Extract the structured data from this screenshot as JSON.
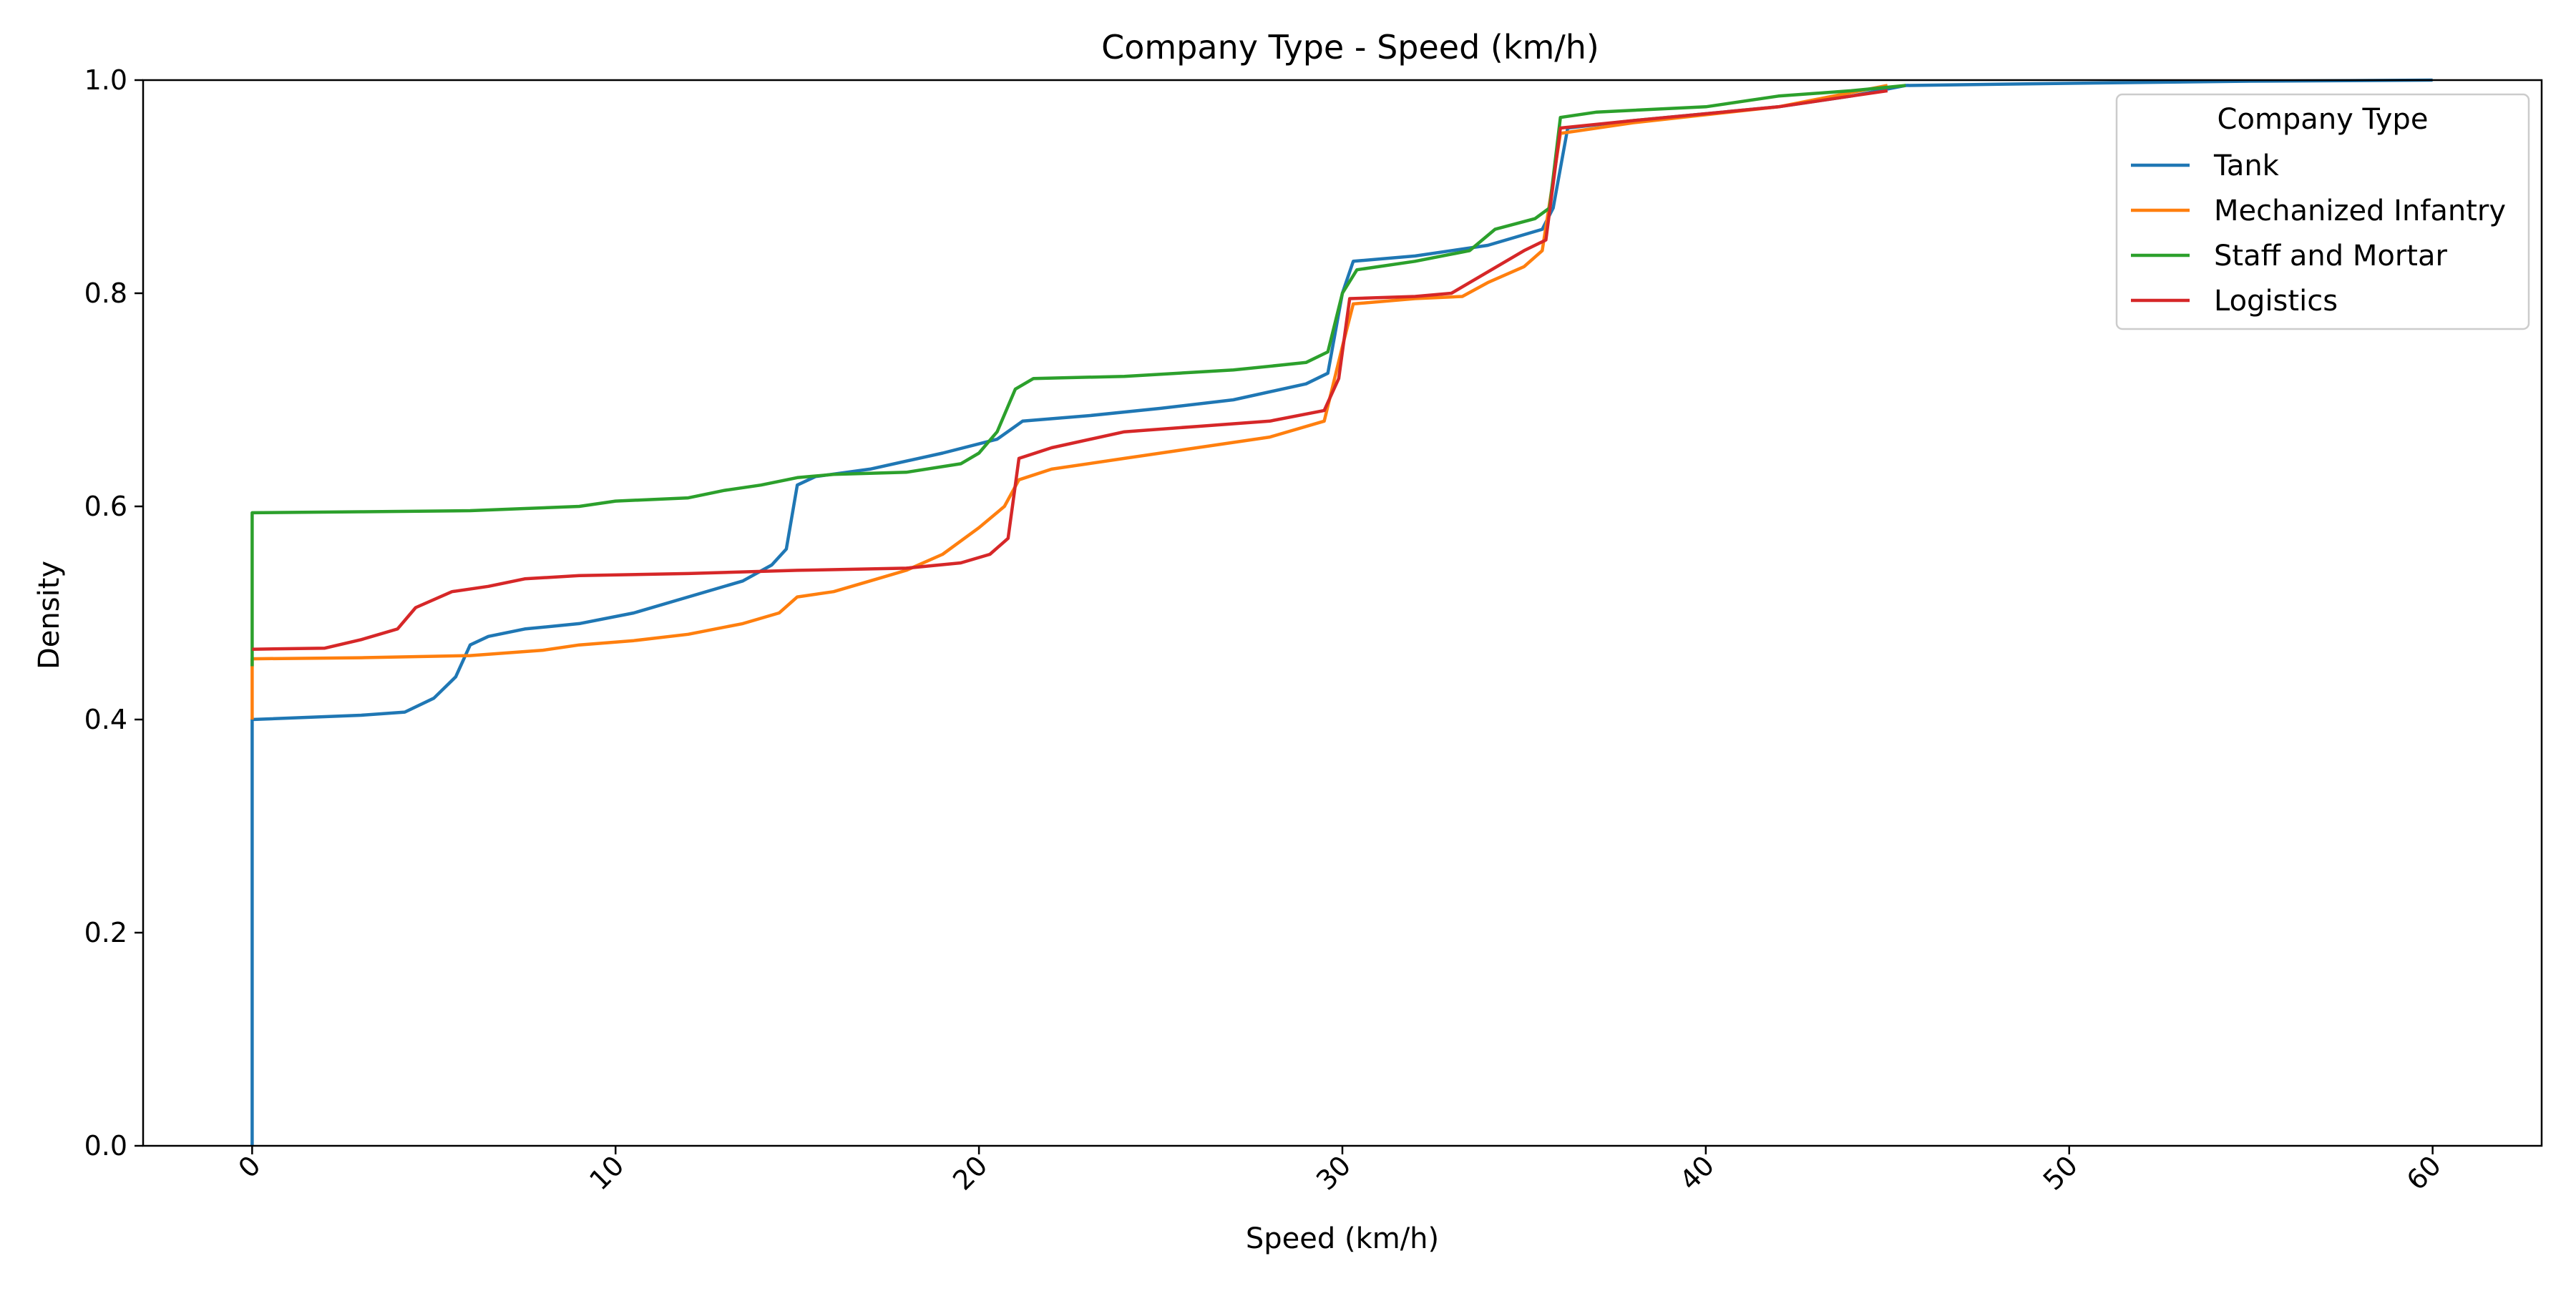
{
  "chart_data": {
    "type": "line",
    "title": "Company Type - Speed (km/h)",
    "xlabel": "Speed (km/h)",
    "ylabel": "Density",
    "xlim": [
      -3,
      63
    ],
    "ylim": [
      0,
      1.0
    ],
    "xticks": [
      0,
      10,
      20,
      30,
      40,
      50,
      60
    ],
    "yticks": [
      0.0,
      0.2,
      0.4,
      0.6,
      0.8,
      1.0
    ],
    "xtick_labels": [
      "0",
      "10",
      "20",
      "30",
      "40",
      "50",
      "60"
    ],
    "ytick_labels": [
      "0.0",
      "0.2",
      "0.4",
      "0.6",
      "0.8",
      "1.0"
    ],
    "xtick_rotation": "45",
    "grid": false,
    "legend": {
      "title": "Company Type",
      "position": "top-right"
    },
    "series": [
      {
        "name": "Tank",
        "color": "#1f77b4",
        "points": [
          [
            0,
            0
          ],
          [
            0,
            0.4
          ],
          [
            3,
            0.404
          ],
          [
            4.2,
            0.407
          ],
          [
            5,
            0.42
          ],
          [
            5.6,
            0.44
          ],
          [
            6,
            0.47
          ],
          [
            6.5,
            0.478
          ],
          [
            7.5,
            0.485
          ],
          [
            9,
            0.49
          ],
          [
            10.5,
            0.5
          ],
          [
            12,
            0.515
          ],
          [
            13.5,
            0.53
          ],
          [
            14.3,
            0.545
          ],
          [
            14.7,
            0.56
          ],
          [
            15,
            0.62
          ],
          [
            15.5,
            0.628
          ],
          [
            17,
            0.635
          ],
          [
            19,
            0.65
          ],
          [
            20.5,
            0.663
          ],
          [
            21.2,
            0.68
          ],
          [
            23,
            0.685
          ],
          [
            25,
            0.692
          ],
          [
            27,
            0.7
          ],
          [
            29,
            0.715
          ],
          [
            29.6,
            0.725
          ],
          [
            30,
            0.8
          ],
          [
            30.3,
            0.83
          ],
          [
            32,
            0.835
          ],
          [
            34,
            0.845
          ],
          [
            35.5,
            0.86
          ],
          [
            35.8,
            0.88
          ],
          [
            36.2,
            0.955
          ],
          [
            38,
            0.962
          ],
          [
            42,
            0.975
          ],
          [
            44,
            0.985
          ],
          [
            45.5,
            0.995
          ],
          [
            50,
            0.997
          ],
          [
            55,
            0.999
          ],
          [
            60,
            1.0
          ]
        ]
      },
      {
        "name": "Mechanized Infantry",
        "color": "#ff7f0e",
        "points": [
          [
            0,
            0.4
          ],
          [
            0,
            0.457
          ],
          [
            3,
            0.458
          ],
          [
            6,
            0.46
          ],
          [
            8,
            0.465
          ],
          [
            9,
            0.47
          ],
          [
            10.5,
            0.474
          ],
          [
            12,
            0.48
          ],
          [
            13.5,
            0.49
          ],
          [
            14.5,
            0.5
          ],
          [
            15,
            0.515
          ],
          [
            16,
            0.52
          ],
          [
            17,
            0.53
          ],
          [
            18,
            0.54
          ],
          [
            19,
            0.555
          ],
          [
            20,
            0.58
          ],
          [
            20.7,
            0.6
          ],
          [
            21.1,
            0.625
          ],
          [
            22,
            0.635
          ],
          [
            24,
            0.645
          ],
          [
            26,
            0.655
          ],
          [
            28,
            0.665
          ],
          [
            29.5,
            0.68
          ],
          [
            30,
            0.75
          ],
          [
            30.3,
            0.79
          ],
          [
            32,
            0.795
          ],
          [
            33.3,
            0.797
          ],
          [
            34,
            0.81
          ],
          [
            35,
            0.825
          ],
          [
            35.5,
            0.84
          ],
          [
            36,
            0.95
          ],
          [
            38,
            0.96
          ],
          [
            42,
            0.975
          ],
          [
            45,
            0.995
          ]
        ]
      },
      {
        "name": "Staff and Mortar",
        "color": "#2ca02c",
        "points": [
          [
            0,
            0.45
          ],
          [
            0,
            0.594
          ],
          [
            3,
            0.595
          ],
          [
            6,
            0.596
          ],
          [
            7.5,
            0.598
          ],
          [
            9,
            0.6
          ],
          [
            10,
            0.605
          ],
          [
            12,
            0.608
          ],
          [
            13,
            0.615
          ],
          [
            14,
            0.62
          ],
          [
            15,
            0.627
          ],
          [
            16,
            0.63
          ],
          [
            18,
            0.632
          ],
          [
            19.5,
            0.64
          ],
          [
            20,
            0.65
          ],
          [
            20.5,
            0.67
          ],
          [
            21,
            0.71
          ],
          [
            21.5,
            0.72
          ],
          [
            24,
            0.722
          ],
          [
            27,
            0.728
          ],
          [
            29,
            0.735
          ],
          [
            29.6,
            0.745
          ],
          [
            30,
            0.8
          ],
          [
            30.4,
            0.822
          ],
          [
            32,
            0.83
          ],
          [
            33.5,
            0.84
          ],
          [
            34.2,
            0.86
          ],
          [
            35.3,
            0.87
          ],
          [
            35.7,
            0.88
          ],
          [
            36,
            0.965
          ],
          [
            37,
            0.97
          ],
          [
            40,
            0.975
          ],
          [
            42,
            0.985
          ],
          [
            44,
            0.99
          ],
          [
            45.5,
            0.995
          ]
        ]
      },
      {
        "name": "Logistics",
        "color": "#d62728",
        "points": [
          [
            0,
            0.466
          ],
          [
            2,
            0.467
          ],
          [
            3,
            0.475
          ],
          [
            4,
            0.485
          ],
          [
            4.5,
            0.505
          ],
          [
            5.5,
            0.52
          ],
          [
            6.5,
            0.525
          ],
          [
            7.5,
            0.532
          ],
          [
            9,
            0.535
          ],
          [
            12,
            0.537
          ],
          [
            15,
            0.54
          ],
          [
            18,
            0.542
          ],
          [
            19.5,
            0.547
          ],
          [
            20.3,
            0.555
          ],
          [
            20.8,
            0.57
          ],
          [
            21.1,
            0.645
          ],
          [
            22,
            0.655
          ],
          [
            24,
            0.67
          ],
          [
            26,
            0.675
          ],
          [
            28,
            0.68
          ],
          [
            29.5,
            0.69
          ],
          [
            29.9,
            0.72
          ],
          [
            30.2,
            0.795
          ],
          [
            32,
            0.797
          ],
          [
            33,
            0.8
          ],
          [
            34,
            0.82
          ],
          [
            35,
            0.84
          ],
          [
            35.6,
            0.85
          ],
          [
            36,
            0.955
          ],
          [
            38,
            0.962
          ],
          [
            42,
            0.975
          ],
          [
            44,
            0.985
          ],
          [
            45,
            0.99
          ]
        ]
      }
    ]
  }
}
